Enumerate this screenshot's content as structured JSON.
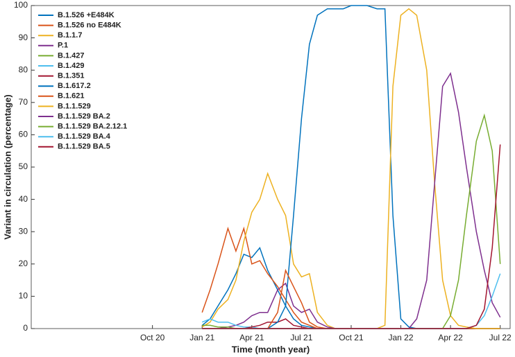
{
  "chart_data": {
    "type": "line",
    "xlabel": "Time (month year)",
    "ylabel": "Variant in circulation (percentage)",
    "x": [
      2020.96,
      2021.0,
      2021.04,
      2021.08,
      2021.13,
      2021.17,
      2021.21,
      2021.25,
      2021.29,
      2021.33,
      2021.38,
      2021.42,
      2021.46,
      2021.5,
      2021.54,
      2021.58,
      2021.63,
      2021.67,
      2021.71,
      2021.75,
      2021.79,
      2021.83,
      2021.88,
      2021.92,
      2021.96,
      2022.0,
      2022.04,
      2022.08,
      2022.13,
      2022.17,
      2022.21,
      2022.25,
      2022.29,
      2022.33,
      2022.38,
      2022.42,
      2022.46,
      2022.5
    ],
    "xlim": [
      2020.14,
      2022.55
    ],
    "xticks": [
      {
        "value": 2020.75,
        "label": "Oct 20"
      },
      {
        "value": 2021.0,
        "label": "Jan 21"
      },
      {
        "value": 2021.25,
        "label": "Apr 21"
      },
      {
        "value": 2021.5,
        "label": "Jul 21"
      },
      {
        "value": 2021.75,
        "label": "Oct 21"
      },
      {
        "value": 2022.0,
        "label": "Jan 22"
      },
      {
        "value": 2022.25,
        "label": "Apr 22"
      },
      {
        "value": 2022.5,
        "label": "Jul 22"
      }
    ],
    "ylim": [
      0,
      100
    ],
    "yticks": [
      0,
      10,
      20,
      30,
      40,
      50,
      60,
      70,
      80,
      90,
      100
    ],
    "grid": false,
    "legend": "top-left",
    "series": [
      {
        "name": "B.1.526 +E484K",
        "color": "#0072BD",
        "values": [
          null,
          1,
          3,
          7,
          12,
          17,
          23,
          22,
          25,
          18,
          12,
          7,
          3,
          1,
          0.5,
          0,
          0,
          0,
          0,
          0,
          0,
          0,
          0,
          0,
          0,
          0,
          0,
          0,
          0,
          0,
          0,
          0,
          0,
          0,
          0,
          0,
          0,
          0
        ]
      },
      {
        "name": "B.1.526 no E484K",
        "color": "#D95319",
        "values": [
          null,
          5,
          12,
          20,
          31,
          24,
          31,
          20,
          21,
          17,
          13,
          9,
          5,
          2,
          1,
          0,
          0,
          0,
          0,
          0,
          0,
          0,
          0,
          0,
          0,
          0,
          0,
          0,
          0,
          0,
          0,
          0,
          0,
          0,
          0,
          0,
          0,
          0
        ]
      },
      {
        "name": "B.1.1.7",
        "color": "#EDB120",
        "values": [
          null,
          0.5,
          2,
          6,
          9,
          15,
          27,
          36,
          40,
          48,
          40,
          35,
          20,
          16,
          17,
          5,
          1,
          0,
          0,
          0,
          0,
          0,
          0,
          0,
          0,
          0,
          0,
          0,
          0,
          0,
          0,
          0,
          0,
          0,
          0,
          0,
          0,
          0
        ]
      },
      {
        "name": "P.1",
        "color": "#7E2F8E",
        "values": [
          null,
          0,
          0,
          0,
          0.5,
          1,
          2,
          4,
          5,
          5,
          12,
          14,
          7,
          5,
          6,
          2,
          0.5,
          0,
          0,
          0,
          0,
          0,
          0,
          0,
          0,
          0,
          0,
          0,
          0,
          0,
          0,
          0,
          0,
          0,
          0,
          0,
          0,
          0
        ]
      },
      {
        "name": "B.1.427",
        "color": "#77AC30",
        "values": [
          null,
          1,
          1,
          0.5,
          0.5,
          0,
          0,
          0,
          0,
          0,
          0,
          0,
          0,
          0,
          0,
          0,
          0,
          0,
          0,
          0,
          0,
          0,
          0,
          0,
          0,
          0,
          0,
          0,
          0,
          0,
          0,
          0,
          0,
          0,
          0,
          0,
          0,
          0
        ]
      },
      {
        "name": "B.1.429",
        "color": "#4DBEEE",
        "values": [
          null,
          2,
          3,
          2,
          2,
          1,
          0.5,
          0.5,
          0,
          0,
          0,
          0,
          0,
          0,
          0,
          0,
          0,
          0,
          0,
          0,
          0,
          0,
          0,
          0,
          0,
          0,
          0,
          0,
          0,
          0,
          0,
          0,
          0,
          0,
          0,
          0,
          0,
          0
        ]
      },
      {
        "name": "B.1.351",
        "color": "#A2142F",
        "values": [
          null,
          0,
          0,
          0,
          0,
          0,
          0,
          0.5,
          1,
          2,
          2,
          3,
          1,
          0.5,
          0,
          0,
          0,
          0,
          0,
          0,
          0,
          0,
          0,
          0,
          0,
          0,
          0,
          0,
          0,
          0,
          0,
          0,
          0,
          0,
          0,
          0,
          0,
          0
        ]
      },
      {
        "name": "B.1.617.2",
        "color": "#0072BD",
        "values": [
          null,
          0,
          0,
          0,
          0,
          0,
          0,
          0,
          0,
          0,
          2,
          7,
          35,
          65,
          88,
          97,
          99,
          99,
          99,
          100,
          100,
          100,
          99,
          99,
          35,
          3,
          0.5,
          0,
          0,
          0,
          0,
          0,
          0,
          0,
          0,
          0,
          0,
          0
        ]
      },
      {
        "name": "B.1.621",
        "color": "#D95319",
        "values": [
          null,
          0,
          0,
          0,
          0,
          0,
          0,
          0,
          0,
          0,
          5,
          18,
          13,
          8,
          2,
          0.5,
          0,
          0,
          0,
          0,
          0,
          0,
          0,
          0,
          0,
          0,
          0,
          0,
          0,
          0,
          0,
          0,
          0,
          0,
          0,
          0,
          0,
          0
        ]
      },
      {
        "name": "B.1.1.529",
        "color": "#EDB120",
        "values": [
          null,
          0,
          0,
          0,
          0,
          0,
          0,
          0,
          0,
          0,
          0,
          0,
          0,
          0,
          0,
          0,
          0,
          0,
          0,
          0,
          0,
          0,
          0,
          1,
          75,
          97,
          99,
          97,
          80,
          45,
          15,
          4,
          1,
          0.5,
          0,
          0,
          0,
          0
        ]
      },
      {
        "name": "B.1.1.529 BA.2",
        "color": "#7E2F8E",
        "values": [
          null,
          0,
          0,
          0,
          0,
          0,
          0,
          0,
          0,
          0,
          0,
          0,
          0,
          0,
          0,
          0,
          0,
          0,
          0,
          0,
          0,
          0,
          0,
          0,
          0,
          0,
          0,
          3,
          15,
          45,
          75,
          79,
          67,
          50,
          30,
          18,
          8,
          3.5
        ]
      },
      {
        "name": "B.1.1.529 BA.2.12.1",
        "color": "#77AC30",
        "values": [
          null,
          0,
          0,
          0,
          0,
          0,
          0,
          0,
          0,
          0,
          0,
          0,
          0,
          0,
          0,
          0,
          0,
          0,
          0,
          0,
          0,
          0,
          0,
          0,
          0,
          0,
          0,
          0,
          0,
          0,
          0,
          4,
          15,
          35,
          58,
          66,
          55,
          20
        ]
      },
      {
        "name": "B.1.1.529 BA.4",
        "color": "#4DBEEE",
        "values": [
          null,
          0,
          0,
          0,
          0,
          0,
          0,
          0,
          0,
          0,
          0,
          0,
          0,
          0,
          0,
          0,
          0,
          0,
          0,
          0,
          0,
          0,
          0,
          0,
          0,
          0,
          0,
          0,
          0,
          0,
          0,
          0,
          0,
          0,
          1,
          4,
          10,
          17
        ]
      },
      {
        "name": "B.1.1.529 BA.5",
        "color": "#A2142F",
        "values": [
          null,
          0,
          0,
          0,
          0,
          0,
          0,
          0,
          0,
          0,
          0,
          0,
          0,
          0,
          0,
          0,
          0,
          0,
          0,
          0,
          0,
          0,
          0,
          0,
          0,
          0,
          0,
          0,
          0,
          0,
          0,
          0,
          0,
          0,
          1,
          6,
          25,
          57
        ]
      }
    ]
  }
}
